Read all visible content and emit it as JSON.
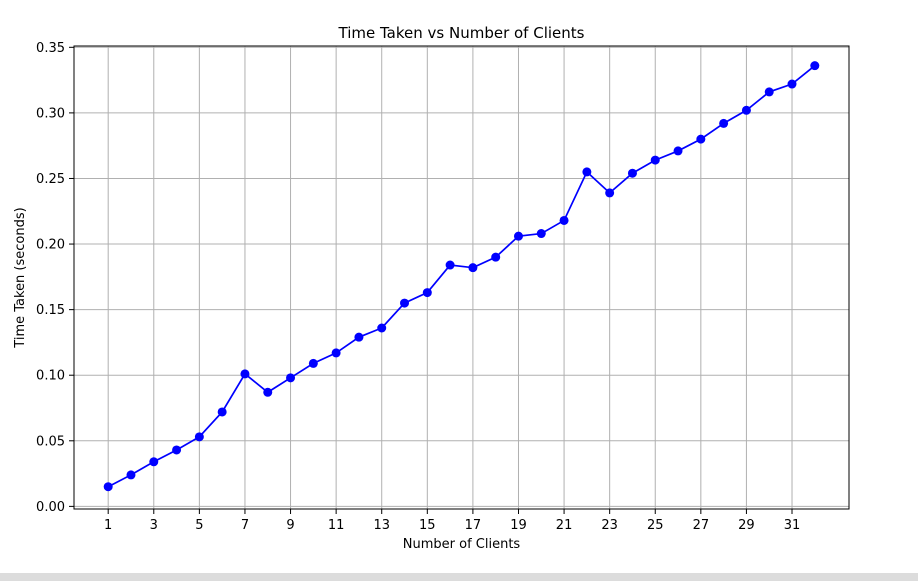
{
  "chart_data": {
    "type": "line",
    "title": "Time Taken vs Number of Clients",
    "xlabel": "Number of Clients",
    "ylabel": "Time Taken (seconds)",
    "x_ticks": [
      1,
      3,
      5,
      7,
      9,
      11,
      13,
      15,
      17,
      19,
      21,
      23,
      25,
      27,
      29,
      31
    ],
    "y_ticks": [
      "0.00",
      "0.05",
      "0.10",
      "0.15",
      "0.20",
      "0.25",
      "0.30",
      "0.35"
    ],
    "xlim": [
      -0.5,
      33.5
    ],
    "ylim": [
      -0.002,
      0.351
    ],
    "grid": true,
    "series": [
      {
        "color": "#0000ff",
        "marker": "circle",
        "x": [
          1,
          2,
          3,
          4,
          5,
          6,
          7,
          8,
          9,
          10,
          11,
          12,
          13,
          14,
          15,
          16,
          17,
          18,
          19,
          20,
          21,
          22,
          23,
          24,
          25,
          26,
          27,
          28,
          29,
          30,
          31,
          32
        ],
        "y": [
          0.015,
          0.024,
          0.034,
          0.043,
          0.053,
          0.072,
          0.101,
          0.087,
          0.098,
          0.109,
          0.117,
          0.129,
          0.136,
          0.155,
          0.163,
          0.184,
          0.182,
          0.19,
          0.206,
          0.208,
          0.218,
          0.255,
          0.239,
          0.254,
          0.264,
          0.271,
          0.28,
          0.292,
          0.302,
          0.316,
          0.322,
          0.336
        ]
      }
    ]
  }
}
